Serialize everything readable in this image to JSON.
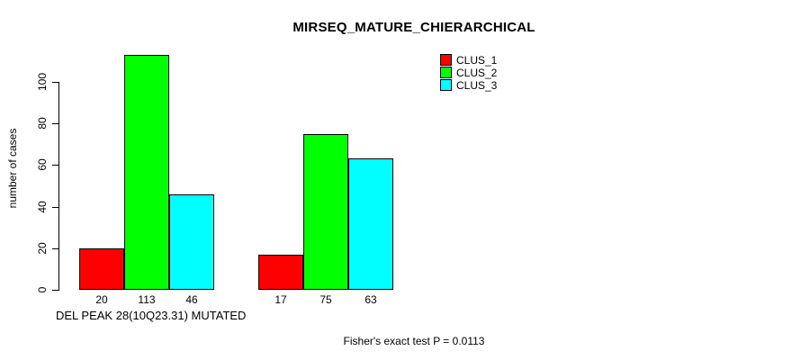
{
  "chart_data": {
    "type": "bar",
    "title": "MIRSEQ_MATURE_CHIERARCHICAL",
    "ylabel": "number of cases",
    "xlabel": "DEL PEAK 28(10Q23.31) MUTATED",
    "annotation": "Fisher's exact test P = 0.0113",
    "yticks": [
      0,
      20,
      40,
      60,
      80,
      100
    ],
    "ylim": [
      0,
      113
    ],
    "grid": false,
    "legend_position": "top-right",
    "series": [
      {
        "name": "CLUS_1",
        "color": "#ff0000",
        "values": [
          20,
          17
        ]
      },
      {
        "name": "CLUS_2",
        "color": "#00ff00",
        "values": [
          113,
          75
        ]
      },
      {
        "name": "CLUS_3",
        "color": "#00ffff",
        "values": [
          46,
          63
        ]
      }
    ],
    "groups": [
      {
        "bar_labels": [
          "20",
          "113",
          "46"
        ],
        "values": [
          20,
          113,
          46
        ]
      },
      {
        "bar_labels": [
          "17",
          "75",
          "63"
        ],
        "values": [
          17,
          75,
          63
        ]
      }
    ],
    "legend": [
      {
        "label": "CLUS_1",
        "color": "#ff0000"
      },
      {
        "label": "CLUS_2",
        "color": "#00ff00"
      },
      {
        "label": "CLUS_3",
        "color": "#00ffff"
      }
    ]
  }
}
